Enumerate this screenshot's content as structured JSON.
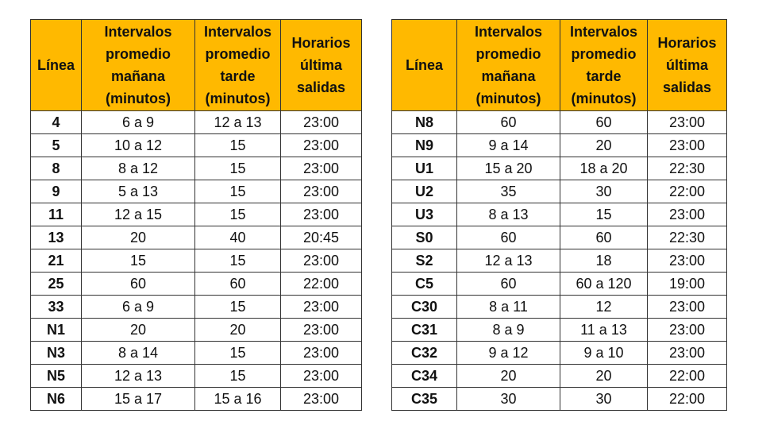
{
  "tables": [
    {
      "header": [
        [
          "Línea"
        ],
        [
          "Intervalos",
          "promedio",
          "mañana",
          "(minutos)"
        ],
        [
          "Intervalos",
          "promedio",
          "tarde",
          "(minutos)"
        ],
        [
          "Horarios",
          "última",
          "salidas"
        ]
      ],
      "rows": [
        [
          "4",
          "6 a 9",
          "12 a 13",
          "23:00"
        ],
        [
          "5",
          "10 a 12",
          "15",
          "23:00"
        ],
        [
          "8",
          "8 a 12",
          "15",
          "23:00"
        ],
        [
          "9",
          "5 a 13",
          "15",
          "23:00"
        ],
        [
          "11",
          "12 a 15",
          "15",
          "23:00"
        ],
        [
          "13",
          "20",
          "40",
          "20:45"
        ],
        [
          "21",
          "15",
          "15",
          "23:00"
        ],
        [
          "25",
          "60",
          "60",
          "22:00"
        ],
        [
          "33",
          "6 a 9",
          "15",
          "23:00"
        ],
        [
          "N1",
          "20",
          "20",
          "23:00"
        ],
        [
          "N3",
          "8 a 14",
          "15",
          "23:00"
        ],
        [
          "N5",
          "12 a 13",
          "15",
          "23:00"
        ],
        [
          "N6",
          "15 a 17",
          "15 a 16",
          "23:00"
        ]
      ]
    },
    {
      "header": [
        [
          "Línea"
        ],
        [
          "Intervalos",
          "promedio",
          "mañana",
          "(minutos)"
        ],
        [
          "Intervalos",
          "promedio",
          "tarde",
          "(minutos)"
        ],
        [
          "Horarios",
          "última",
          "salidas"
        ]
      ],
      "rows": [
        [
          "N8",
          "60",
          "60",
          "23:00"
        ],
        [
          "N9",
          "9 a 14",
          "20",
          "23:00"
        ],
        [
          "U1",
          "15 a 20",
          "18 a 20",
          "22:30"
        ],
        [
          "U2",
          "35",
          "30",
          "22:00"
        ],
        [
          "U3",
          "8 a 13",
          "15",
          "23:00"
        ],
        [
          "S0",
          "60",
          "60",
          "22:30"
        ],
        [
          "S2",
          "12 a 13",
          "18",
          "23:00"
        ],
        [
          "C5",
          "60",
          "60 a 120",
          "19:00"
        ],
        [
          "C30",
          "8 a 11",
          "12",
          "23:00"
        ],
        [
          "C31",
          "8 a 9",
          "11 a 13",
          "23:00"
        ],
        [
          "C32",
          "9 a 12",
          "9 a 10",
          "23:00"
        ],
        [
          "C34",
          "20",
          "20",
          "22:00"
        ],
        [
          "C35",
          "30",
          "30",
          "22:00"
        ]
      ]
    }
  ]
}
